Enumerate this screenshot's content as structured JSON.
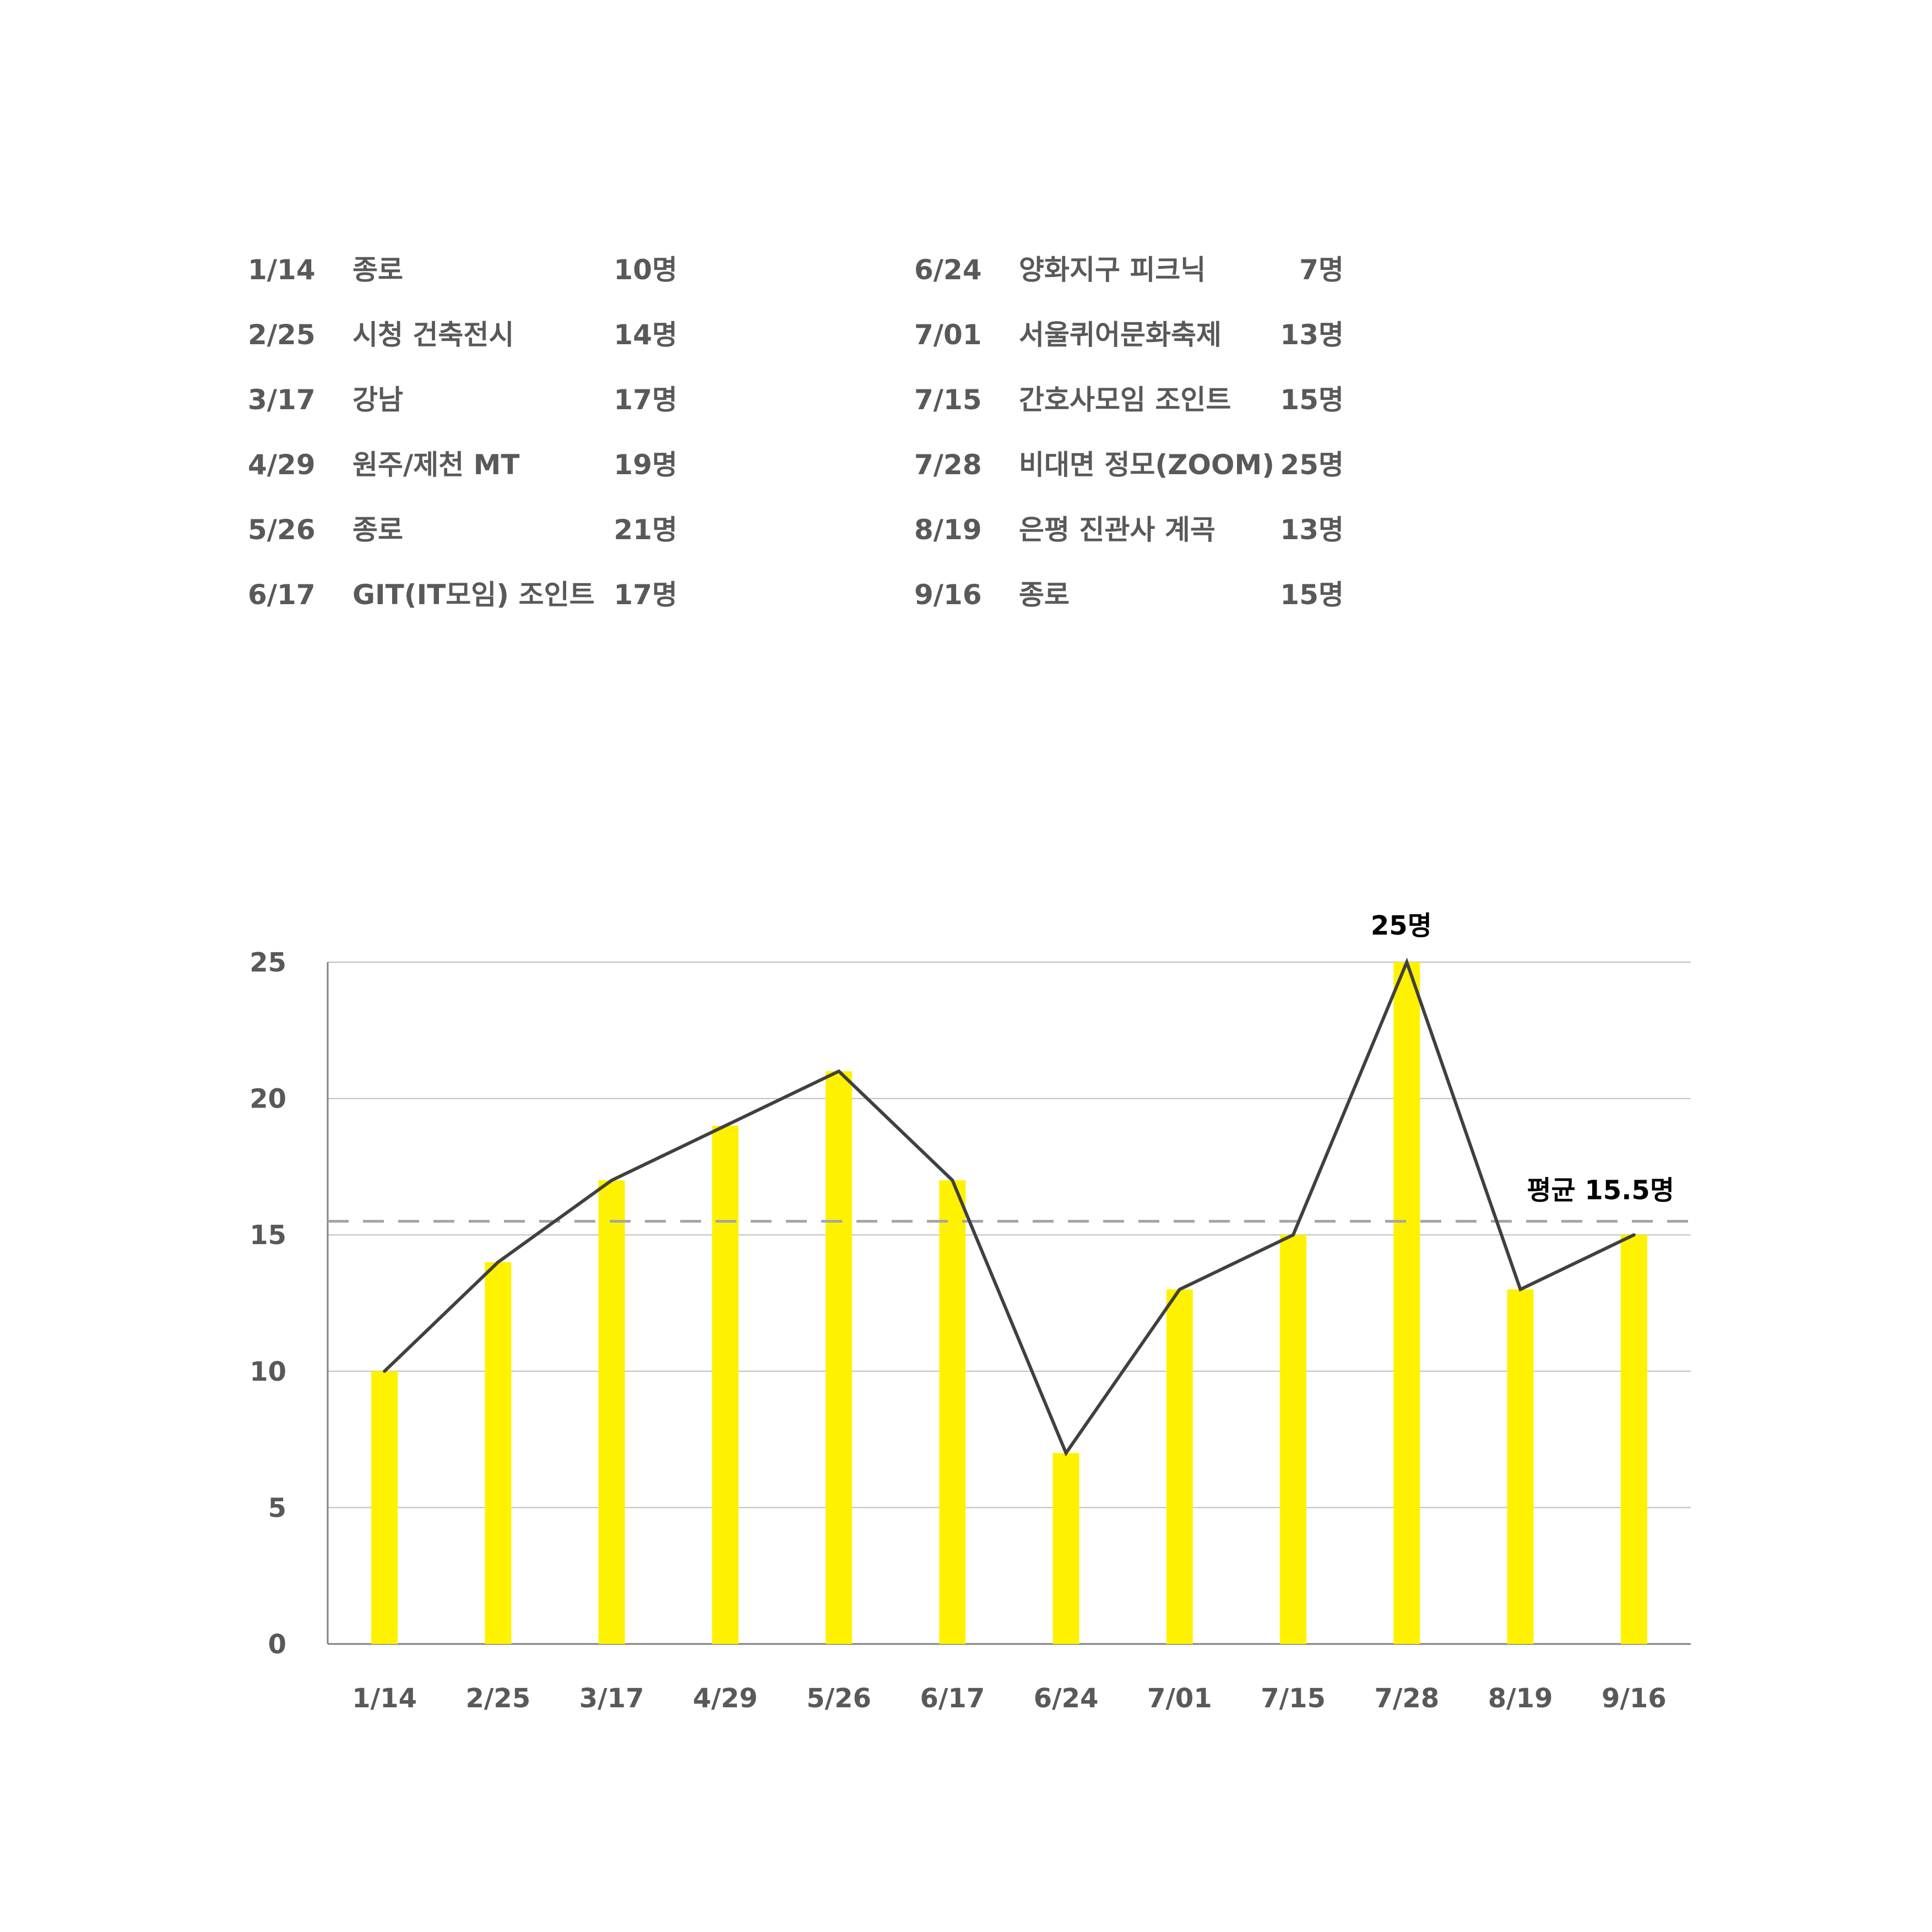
{
  "colors": {
    "bar": "#FFF200",
    "line": "#404040",
    "grid": "#BFBFBF",
    "axis": "#7F7F7F",
    "average": "#A6A6A6",
    "text": "#595959",
    "annotation": "#000000"
  },
  "events": {
    "left": [
      {
        "date": "1/14",
        "place": "종로",
        "count": "10명"
      },
      {
        "date": "2/25",
        "place": "시청 건축전시",
        "count": "14명"
      },
      {
        "date": "3/17",
        "place": "강남",
        "count": "17명"
      },
      {
        "date": "4/29",
        "place": "원주/제천 MT",
        "count": "19명"
      },
      {
        "date": "5/26",
        "place": "종로",
        "count": "21명"
      },
      {
        "date": "6/17",
        "place": "GIT(IT모임) 조인트",
        "count": "17명"
      }
    ],
    "right": [
      {
        "date": "6/24",
        "place": "양화지구 피크닉",
        "count": "7명"
      },
      {
        "date": "7/01",
        "place": "서울퀴어문화축제",
        "count": "13명"
      },
      {
        "date": "7/15",
        "place": "간호사모임 조인트",
        "count": "15명"
      },
      {
        "date": "7/28",
        "place": "비대면 정모(ZOOM)",
        "count": "25명"
      },
      {
        "date": "8/19",
        "place": "은평 진관사 계곡",
        "count": "13명"
      },
      {
        "date": "9/16",
        "place": "종로",
        "count": "15명"
      }
    ]
  },
  "chart_data": {
    "type": "bar",
    "categories": [
      "1/14",
      "2/25",
      "3/17",
      "4/29",
      "5/26",
      "6/17",
      "6/24",
      "7/01",
      "7/15",
      "7/28",
      "8/19",
      "9/16"
    ],
    "values": [
      10,
      14,
      17,
      19,
      21,
      17,
      7,
      13,
      15,
      25,
      13,
      15
    ],
    "overlay_line": true,
    "ylim": [
      0,
      25
    ],
    "yticks": [
      0,
      5,
      10,
      15,
      20,
      25
    ],
    "grid": true,
    "average": {
      "value": 15.5,
      "label": "평균 15.5명"
    },
    "annotations": [
      {
        "category": "7/28",
        "label": "25명"
      }
    ],
    "title": "",
    "xlabel": "",
    "ylabel": ""
  }
}
